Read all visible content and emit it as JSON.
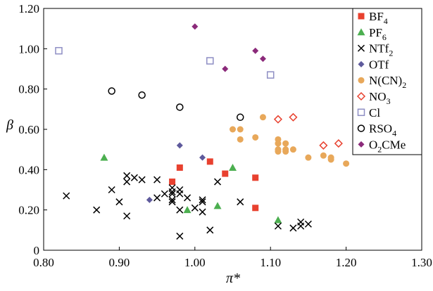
{
  "chart_data": {
    "type": "scatter",
    "title": "",
    "xlabel": "π*",
    "ylabel": "β",
    "xlim": [
      0.8,
      1.3
    ],
    "ylim": [
      0,
      1.2
    ],
    "x_ticks": [
      {
        "v": 0.8,
        "label": "0.80"
      },
      {
        "v": 0.9,
        "label": "0.90"
      },
      {
        "v": 1.0,
        "label": "1.00"
      },
      {
        "v": 1.1,
        "label": "1.10"
      },
      {
        "v": 1.2,
        "label": "1.20"
      },
      {
        "v": 1.3,
        "label": "1.30"
      }
    ],
    "y_ticks": [
      {
        "v": 0,
        "label": "0"
      },
      {
        "v": 0.2,
        "label": "0.20"
      },
      {
        "v": 0.4,
        "label": "0.40"
      },
      {
        "v": 0.6,
        "label": "0.60"
      },
      {
        "v": 0.8,
        "label": "0.80"
      },
      {
        "v": 1.0,
        "label": "1.00"
      },
      {
        "v": 1.2,
        "label": "1.20"
      }
    ],
    "grid": false,
    "legend_position": "top-right",
    "series": [
      {
        "name": "BF",
        "sub": "4",
        "after": "",
        "marker": "square-filled",
        "color": "#e8412f",
        "points": [
          [
            0.97,
            0.34
          ],
          [
            0.98,
            0.41
          ],
          [
            1.02,
            0.44
          ],
          [
            1.04,
            0.38
          ],
          [
            1.08,
            0.36
          ],
          [
            1.08,
            0.21
          ]
        ]
      },
      {
        "name": "PF",
        "sub": "6",
        "after": "",
        "marker": "triangle-filled",
        "color": "#4caf50",
        "points": [
          [
            0.88,
            0.46
          ],
          [
            0.99,
            0.2
          ],
          [
            1.03,
            0.22
          ],
          [
            1.05,
            0.41
          ],
          [
            1.11,
            0.15
          ]
        ]
      },
      {
        "name": "NTf",
        "sub": "2",
        "after": "",
        "marker": "x",
        "color": "#000000",
        "points": [
          [
            0.83,
            0.27
          ],
          [
            0.87,
            0.2
          ],
          [
            0.89,
            0.3
          ],
          [
            0.9,
            0.24
          ],
          [
            0.91,
            0.17
          ],
          [
            0.91,
            0.34
          ],
          [
            0.91,
            0.37
          ],
          [
            0.92,
            0.36
          ],
          [
            0.93,
            0.35
          ],
          [
            0.95,
            0.35
          ],
          [
            0.95,
            0.26
          ],
          [
            0.96,
            0.28
          ],
          [
            0.97,
            0.29
          ],
          [
            0.97,
            0.31
          ],
          [
            0.97,
            0.25
          ],
          [
            0.97,
            0.24
          ],
          [
            0.97,
            0.28
          ],
          [
            0.98,
            0.3
          ],
          [
            0.98,
            0.28
          ],
          [
            0.98,
            0.2
          ],
          [
            0.98,
            0.07
          ],
          [
            0.99,
            0.26
          ],
          [
            1.0,
            0.21
          ],
          [
            1.01,
            0.25
          ],
          [
            1.01,
            0.19
          ],
          [
            1.01,
            0.24
          ],
          [
            1.02,
            0.1
          ],
          [
            1.03,
            0.34
          ],
          [
            1.06,
            0.24
          ],
          [
            1.11,
            0.12
          ],
          [
            1.13,
            0.11
          ],
          [
            1.14,
            0.12
          ],
          [
            1.14,
            0.14
          ],
          [
            1.15,
            0.13
          ]
        ]
      },
      {
        "name": "OTf",
        "sub": "",
        "after": "",
        "marker": "diamond-filled",
        "color": "#5e5a9c",
        "points": [
          [
            0.94,
            0.25
          ],
          [
            0.98,
            0.52
          ],
          [
            1.01,
            0.46
          ]
        ]
      },
      {
        "name": "N(CN)",
        "sub": "2",
        "after": "",
        "marker": "circle-filled",
        "color": "#e8a85a",
        "points": [
          [
            1.05,
            0.6
          ],
          [
            1.06,
            0.6
          ],
          [
            1.06,
            0.55
          ],
          [
            1.08,
            0.56
          ],
          [
            1.09,
            0.66
          ],
          [
            1.11,
            0.55
          ],
          [
            1.11,
            0.53
          ],
          [
            1.11,
            0.5
          ],
          [
            1.11,
            0.49
          ],
          [
            1.12,
            0.53
          ],
          [
            1.12,
            0.5
          ],
          [
            1.12,
            0.49
          ],
          [
            1.13,
            0.5
          ],
          [
            1.15,
            0.46
          ],
          [
            1.17,
            0.47
          ],
          [
            1.18,
            0.46
          ],
          [
            1.18,
            0.45
          ],
          [
            1.2,
            0.43
          ]
        ]
      },
      {
        "name": "NO",
        "sub": "3",
        "after": "",
        "marker": "diamond-open",
        "color": "#e8412f",
        "points": [
          [
            1.11,
            0.65
          ],
          [
            1.13,
            0.66
          ],
          [
            1.17,
            0.52
          ],
          [
            1.19,
            0.53
          ]
        ]
      },
      {
        "name": "Cl",
        "sub": "",
        "after": "",
        "marker": "square-open",
        "color": "#8e8ec4",
        "points": [
          [
            0.82,
            0.99
          ],
          [
            1.02,
            0.94
          ],
          [
            1.1,
            0.87
          ]
        ]
      },
      {
        "name": "RSO",
        "sub": "4",
        "after": "",
        "marker": "circle-open",
        "color": "#000000",
        "points": [
          [
            0.89,
            0.79
          ],
          [
            0.93,
            0.77
          ],
          [
            0.98,
            0.71
          ],
          [
            1.06,
            0.66
          ]
        ]
      },
      {
        "name": "O",
        "sub": "2",
        "after": "CMe",
        "marker": "diamond-filled",
        "color": "#8b2a7a",
        "points": [
          [
            1.0,
            1.11
          ],
          [
            1.04,
            0.9
          ],
          [
            1.08,
            0.99
          ],
          [
            1.09,
            0.95
          ]
        ]
      }
    ]
  }
}
